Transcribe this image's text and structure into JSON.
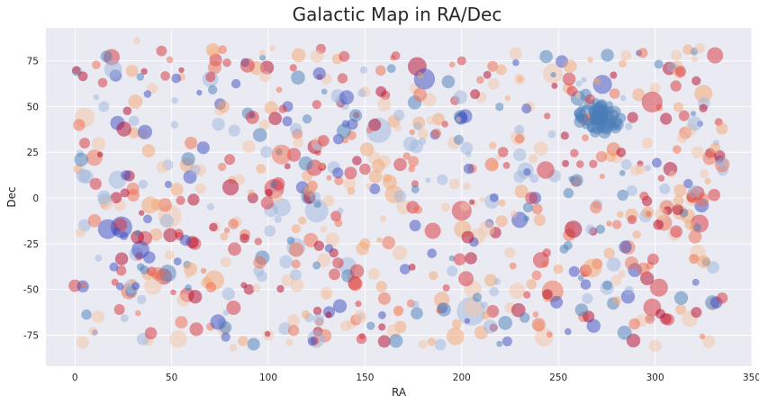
{
  "chart_data": {
    "type": "scatter",
    "title": "Galactic Map in RA/Dec",
    "xlabel": "RA",
    "ylabel": "Dec",
    "xlim": [
      -15,
      350
    ],
    "ylim": [
      -92,
      93
    ],
    "x_ticks": [
      0,
      50,
      100,
      150,
      200,
      250,
      300,
      350
    ],
    "y_ticks": [
      -75,
      -50,
      -25,
      0,
      25,
      50,
      75
    ],
    "x_tick_labels": [
      "0",
      "50",
      "100",
      "150",
      "200",
      "250",
      "300",
      "350"
    ],
    "y_tick_labels": [
      "-75",
      "-50",
      "-25",
      "0",
      "25",
      "50",
      "75"
    ],
    "grid": true,
    "background": "#eaeaf2",
    "colormap": [
      "#3b4cc0",
      "#4a7db8",
      "#9db6dc",
      "#f4c3a6",
      "#f6a56f",
      "#ef6a4a",
      "#d7303a",
      "#b40426"
    ],
    "points": [
      {
        "x": 19,
        "y": 77,
        "s": 9,
        "c": "#d7303a"
      },
      {
        "x": 32,
        "y": 86,
        "s": 4,
        "c": "#f4c3a6"
      },
      {
        "x": 72,
        "y": 80,
        "s": 7,
        "c": "#f4c3a6"
      },
      {
        "x": 70,
        "y": 65,
        "s": 9,
        "c": "#9db6dc"
      },
      {
        "x": 88,
        "y": 74,
        "s": 5,
        "c": "#3b4cc0"
      },
      {
        "x": 5,
        "y": 44,
        "s": 11,
        "c": "#f4c3a6"
      },
      {
        "x": 22,
        "y": 41,
        "s": 8,
        "c": "#3b4cc0"
      },
      {
        "x": 10,
        "y": 22,
        "s": 9,
        "c": "#ef6a4a"
      },
      {
        "x": 22,
        "y": 10,
        "s": 10,
        "c": "#9db6dc"
      },
      {
        "x": 58,
        "y": 18,
        "s": 8,
        "c": "#f6a56f"
      },
      {
        "x": 80,
        "y": 21,
        "s": 6,
        "c": "#d7303a"
      },
      {
        "x": 103,
        "y": 5,
        "s": 11,
        "c": "#d7303a"
      },
      {
        "x": 92,
        "y": 0,
        "s": 6,
        "c": "#b40426"
      },
      {
        "x": 124,
        "y": 28,
        "s": 8,
        "c": "#b40426"
      },
      {
        "x": 125,
        "y": -7,
        "s": 13,
        "c": "#9db6dc"
      },
      {
        "x": 107,
        "y": -5,
        "s": 10,
        "c": "#9db6dc"
      },
      {
        "x": 49,
        "y": -10,
        "s": 13,
        "c": "#f4c3a6"
      },
      {
        "x": 17,
        "y": -17,
        "s": 11,
        "c": "#3b4cc0"
      },
      {
        "x": 24,
        "y": -16,
        "s": 12,
        "c": "#3b4cc0"
      },
      {
        "x": 5,
        "y": -15,
        "s": 7,
        "c": "#9db6dc"
      },
      {
        "x": 0,
        "y": -48,
        "s": 7,
        "c": "#d7303a"
      },
      {
        "x": 28,
        "y": -51,
        "s": 9,
        "c": "#ef6a4a"
      },
      {
        "x": 46,
        "y": -43,
        "s": 9,
        "c": "#d7303a"
      },
      {
        "x": 58,
        "y": -53,
        "s": 8,
        "c": "#d7303a"
      },
      {
        "x": 72,
        "y": -45,
        "s": 11,
        "c": "#f6a56f"
      },
      {
        "x": 82,
        "y": -60,
        "s": 8,
        "c": "#d7303a"
      },
      {
        "x": 23,
        "y": -61,
        "s": 6,
        "c": "#d7303a"
      },
      {
        "x": 4,
        "y": -79,
        "s": 7,
        "c": "#f4c3a6"
      },
      {
        "x": 77,
        "y": -72,
        "s": 7,
        "c": "#f4c3a6"
      },
      {
        "x": 113,
        "y": -67,
        "s": 7,
        "c": "#f4c3a6"
      },
      {
        "x": 157,
        "y": 37,
        "s": 14,
        "c": "#9db6dc"
      },
      {
        "x": 155,
        "y": 40,
        "s": 7,
        "c": "#b40426"
      },
      {
        "x": 165,
        "y": 42,
        "s": 7,
        "c": "#f6a56f"
      },
      {
        "x": 160,
        "y": 20,
        "s": 7,
        "c": "#f4c3a6"
      },
      {
        "x": 165,
        "y": 2,
        "s": 10,
        "c": "#f6a56f"
      },
      {
        "x": 170,
        "y": -5,
        "s": 8,
        "c": "#f4c3a6"
      },
      {
        "x": 185,
        "y": -18,
        "s": 9,
        "c": "#d7303a"
      },
      {
        "x": 200,
        "y": -7,
        "s": 11,
        "c": "#d7303a"
      },
      {
        "x": 205,
        "y": -62,
        "s": 16,
        "c": "#9db6dc"
      },
      {
        "x": 206,
        "y": -60,
        "s": 10,
        "c": "#f4c3a6"
      },
      {
        "x": 216,
        "y": -62,
        "s": 7,
        "c": "#d7303a"
      },
      {
        "x": 225,
        "y": -60,
        "s": 6,
        "c": "#f4c3a6"
      },
      {
        "x": 208,
        "y": -21,
        "s": 9,
        "c": "#f4c3a6"
      },
      {
        "x": 230,
        "y": -12,
        "s": 9,
        "c": "#3b4cc0"
      },
      {
        "x": 241,
        "y": -34,
        "s": 9,
        "c": "#d7303a"
      },
      {
        "x": 247,
        "y": -51,
        "s": 12,
        "c": "#ef6a4a"
      },
      {
        "x": 249,
        "y": -57,
        "s": 7,
        "c": "#3b4cc0"
      },
      {
        "x": 216,
        "y": 72,
        "s": 6,
        "c": "#ef6a4a"
      },
      {
        "x": 228,
        "y": 79,
        "s": 7,
        "c": "#f4c3a6"
      },
      {
        "x": 247,
        "y": 68,
        "s": 11,
        "c": "#f4c3a6"
      },
      {
        "x": 229,
        "y": 33,
        "s": 8,
        "c": "#f4c3a6"
      },
      {
        "x": 233,
        "y": 15,
        "s": 9,
        "c": "#9db6dc"
      },
      {
        "x": 265,
        "y": 47,
        "s": 8,
        "c": "#4a7db8"
      },
      {
        "x": 270,
        "y": 44,
        "s": 9,
        "c": "#4a7db8"
      },
      {
        "x": 273,
        "y": 46,
        "s": 10,
        "c": "#4a7db8"
      },
      {
        "x": 276,
        "y": 43,
        "s": 9,
        "c": "#4a7db8"
      },
      {
        "x": 268,
        "y": 39,
        "s": 7,
        "c": "#4a7db8"
      },
      {
        "x": 279,
        "y": 47,
        "s": 7,
        "c": "#4a7db8"
      },
      {
        "x": 272,
        "y": 50,
        "s": 7,
        "c": "#4a7db8"
      },
      {
        "x": 263,
        "y": 43,
        "s": 6,
        "c": "#4a7db8"
      },
      {
        "x": 281,
        "y": 40,
        "s": 6,
        "c": "#4a7db8"
      },
      {
        "x": 269,
        "y": 36,
        "s": 6,
        "c": "#4a7db8"
      },
      {
        "x": 275,
        "y": 38,
        "s": 7,
        "c": "#4a7db8"
      },
      {
        "x": 266,
        "y": 51,
        "s": 6,
        "c": "#4a7db8"
      },
      {
        "x": 325,
        "y": 57,
        "s": 10,
        "c": "#f6a56f"
      },
      {
        "x": 331,
        "y": 78,
        "s": 9,
        "c": "#d7303a"
      },
      {
        "x": 312,
        "y": 72,
        "s": 6,
        "c": "#f4c3a6"
      },
      {
        "x": 322,
        "y": 25,
        "s": 7,
        "c": "#f4c3a6"
      },
      {
        "x": 306,
        "y": -5,
        "s": 8,
        "c": "#ef6a4a"
      },
      {
        "x": 317,
        "y": -10,
        "s": 8,
        "c": "#f6a56f"
      },
      {
        "x": 323,
        "y": -14,
        "s": 10,
        "c": "#d7303a"
      },
      {
        "x": 324,
        "y": -4,
        "s": 8,
        "c": "#3b4cc0"
      },
      {
        "x": 313,
        "y": -8,
        "s": 8,
        "c": "#f6a56f"
      },
      {
        "x": 319,
        "y": -1,
        "s": 7,
        "c": "#f4c3a6"
      },
      {
        "x": 302,
        "y": -49,
        "s": 10,
        "c": "#d7303a"
      },
      {
        "x": 322,
        "y": -30,
        "s": 9,
        "c": "#f4c3a6"
      },
      {
        "x": 330,
        "y": -58,
        "s": 7,
        "c": "#f4c3a6"
      },
      {
        "x": 300,
        "y": -81,
        "s": 7,
        "c": "#f4c3a6"
      },
      {
        "x": 318,
        "y": -66,
        "s": 9,
        "c": "#f4c3a6"
      },
      {
        "x": 286,
        "y": -27,
        "s": 8,
        "c": "#ef6a4a"
      },
      {
        "x": 293,
        "y": -67,
        "s": 7,
        "c": "#f4c3a6"
      },
      {
        "x": 263,
        "y": -65,
        "s": 6,
        "c": "#ef6a4a"
      },
      {
        "x": 270,
        "y": -36,
        "s": 6,
        "c": "#ef6a4a"
      },
      {
        "x": 253,
        "y": -28,
        "s": 5,
        "c": "#4a7db8"
      },
      {
        "x": 255,
        "y": -26,
        "s": 5,
        "c": "#4a7db8"
      },
      {
        "x": 259,
        "y": 9,
        "s": 6,
        "c": "#ef6a4a"
      },
      {
        "x": 288,
        "y": 4,
        "s": 6,
        "c": "#9db6dc"
      },
      {
        "x": 296,
        "y": 30,
        "s": 6,
        "c": "#f4c3a6"
      },
      {
        "x": 241,
        "y": 27,
        "s": 8,
        "c": "#f4c3a6"
      },
      {
        "x": 248,
        "y": 12,
        "s": 7,
        "c": "#9db6dc"
      },
      {
        "x": 256,
        "y": -16,
        "s": 6,
        "c": "#f4c3a6"
      },
      {
        "x": 239,
        "y": -6,
        "s": 6,
        "c": "#ef6a4a"
      },
      {
        "x": 188,
        "y": 43,
        "s": 7,
        "c": "#f6a56f"
      },
      {
        "x": 190,
        "y": 10,
        "s": 6,
        "c": "#9db6dc"
      },
      {
        "x": 196,
        "y": 30,
        "s": 7,
        "c": "#f4c3a6"
      },
      {
        "x": 176,
        "y": 60,
        "s": 6,
        "c": "#f4c3a6"
      },
      {
        "x": 160,
        "y": -55,
        "s": 7,
        "c": "#ef6a4a"
      },
      {
        "x": 168,
        "y": -30,
        "s": 8,
        "c": "#f4c3a6"
      },
      {
        "x": 145,
        "y": -47,
        "s": 8,
        "c": "#ef6a4a"
      },
      {
        "x": 130,
        "y": -52,
        "s": 7,
        "c": "#f4c3a6"
      },
      {
        "x": 122,
        "y": -23,
        "s": 8,
        "c": "#ef6a4a"
      },
      {
        "x": 135,
        "y": -10,
        "s": 6,
        "c": "#d7303a"
      },
      {
        "x": 142,
        "y": 8,
        "s": 7,
        "c": "#f4c3a6"
      },
      {
        "x": 150,
        "y": 58,
        "s": 6,
        "c": "#f4c3a6"
      },
      {
        "x": 130,
        "y": 65,
        "s": 6,
        "c": "#f4c3a6"
      },
      {
        "x": 110,
        "y": 50,
        "s": 6,
        "c": "#3b4cc0"
      },
      {
        "x": 98,
        "y": 40,
        "s": 6,
        "c": "#f4c3a6"
      },
      {
        "x": 90,
        "y": 28,
        "s": 7,
        "c": "#f4c3a6"
      },
      {
        "x": 60,
        "y": 30,
        "s": 7,
        "c": "#ef6a4a"
      },
      {
        "x": 40,
        "y": 60,
        "s": 6,
        "c": "#f4c3a6"
      },
      {
        "x": 15,
        "y": 50,
        "s": 6,
        "c": "#9db6dc"
      },
      {
        "x": 5,
        "y": 30,
        "s": 6,
        "c": "#d7303a"
      },
      {
        "x": 30,
        "y": 5,
        "s": 7,
        "c": "#ef6a4a"
      },
      {
        "x": 42,
        "y": -20,
        "s": 7,
        "c": "#f6a56f"
      },
      {
        "x": 62,
        "y": -25,
        "s": 7,
        "c": "#d7303a"
      },
      {
        "x": 78,
        "y": -35,
        "s": 6,
        "c": "#f4c3a6"
      },
      {
        "x": 88,
        "y": -20,
        "s": 6,
        "c": "#ef6a4a"
      },
      {
        "x": 95,
        "y": -40,
        "s": 6,
        "c": "#9db6dc"
      },
      {
        "x": 110,
        "y": -45,
        "s": 7,
        "c": "#f4c3a6"
      },
      {
        "x": 100,
        "y": -75,
        "s": 6,
        "c": "#f4c3a6"
      },
      {
        "x": 55,
        "y": -68,
        "s": 7,
        "c": "#ef6a4a"
      },
      {
        "x": 38,
        "y": -78,
        "s": 6,
        "c": "#f4c3a6"
      },
      {
        "x": 12,
        "y": -65,
        "s": 7,
        "c": "#f4c3a6"
      },
      {
        "x": 180,
        "y": -80,
        "s": 5,
        "c": "#f4c3a6"
      },
      {
        "x": 195,
        "y": -40,
        "s": 6,
        "c": "#9db6dc"
      },
      {
        "x": 215,
        "y": -45,
        "s": 7,
        "c": "#f6a56f"
      },
      {
        "x": 225,
        "y": -30,
        "s": 6,
        "c": "#f4c3a6"
      },
      {
        "x": 235,
        "y": 50,
        "s": 6,
        "c": "#f4c3a6"
      },
      {
        "x": 210,
        "y": 55,
        "s": 6,
        "c": "#f4c3a6"
      },
      {
        "x": 200,
        "y": 75,
        "s": 5,
        "c": "#d7303a"
      },
      {
        "x": 285,
        "y": 78,
        "s": 6,
        "c": "#f4c3a6"
      },
      {
        "x": 300,
        "y": 60,
        "s": 6,
        "c": "#f4c3a6"
      },
      {
        "x": 315,
        "y": 45,
        "s": 6,
        "c": "#d7303a"
      },
      {
        "x": 335,
        "y": 15,
        "s": 6,
        "c": "#9db6dc"
      },
      {
        "x": 330,
        "y": -38,
        "s": 7,
        "c": "#9db6dc"
      },
      {
        "x": 310,
        "y": -20,
        "s": 7,
        "c": "#f4c3a6"
      },
      {
        "x": 295,
        "y": -10,
        "s": 7,
        "c": "#9db6dc"
      },
      {
        "x": 280,
        "y": -45,
        "s": 6,
        "c": "#f4c3a6"
      },
      {
        "x": 265,
        "y": -55,
        "s": 6,
        "c": "#9db6dc"
      },
      {
        "x": 240,
        "y": -70,
        "s": 6,
        "c": "#f4c3a6"
      },
      {
        "x": 150,
        "y": -25,
        "s": 6,
        "c": "#f6a56f"
      },
      {
        "x": 155,
        "y": 5,
        "s": 6,
        "c": "#3b4cc0"
      },
      {
        "x": 175,
        "y": 20,
        "s": 6,
        "c": "#ef6a4a"
      },
      {
        "x": 180,
        "y": 35,
        "s": 6,
        "c": "#f4c3a6"
      },
      {
        "x": 120,
        "y": 12,
        "s": 6,
        "c": "#f6a56f"
      },
      {
        "x": 115,
        "y": 35,
        "s": 6,
        "c": "#ef6a4a"
      },
      {
        "x": 75,
        "y": 48,
        "s": 6,
        "c": "#f4c3a6"
      },
      {
        "x": 65,
        "y": 5,
        "s": 6,
        "c": "#f4c3a6"
      },
      {
        "x": 35,
        "y": 35,
        "s": 6,
        "c": "#f4c3a6"
      },
      {
        "x": 48,
        "y": 18,
        "s": 6,
        "c": "#9db6dc"
      },
      {
        "x": 85,
        "y": 10,
        "s": 6,
        "c": "#f4c3a6"
      },
      {
        "x": 140,
        "y": -70,
        "s": 6,
        "c": "#f4c3a6"
      },
      {
        "x": 125,
        "y": -80,
        "s": 5,
        "c": "#f4c3a6"
      },
      {
        "x": 230,
        "y": 65,
        "s": 6,
        "c": "#f4c3a6"
      },
      {
        "x": 255,
        "y": 60,
        "s": 6,
        "c": "#f6a56f"
      },
      {
        "x": 290,
        "y": 15,
        "s": 6,
        "c": "#f4c3a6"
      },
      {
        "x": 305,
        "y": 5,
        "s": 6,
        "c": "#9db6dc"
      }
    ]
  }
}
